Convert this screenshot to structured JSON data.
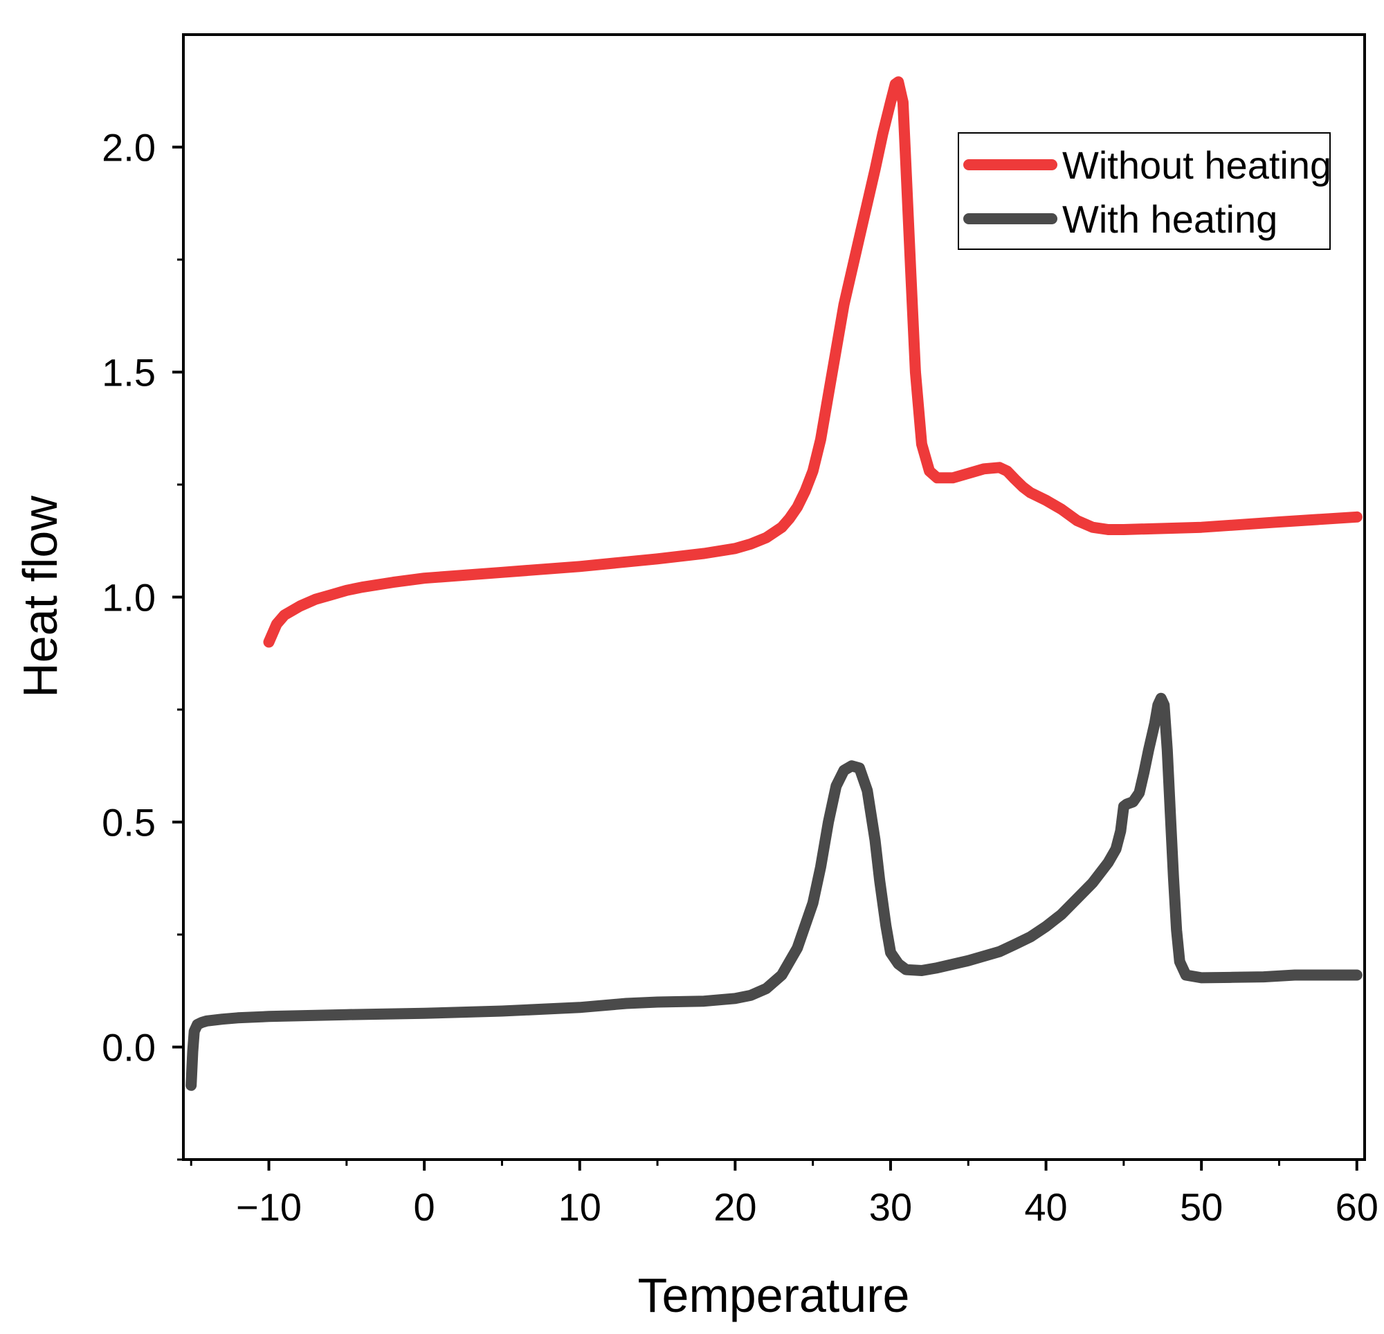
{
  "chart_data": {
    "type": "line",
    "title": "",
    "xlabel": "Temperature",
    "ylabel": "Heat flow",
    "xlim": [
      -15.5,
      60.5
    ],
    "ylim": [
      -0.25,
      2.25
    ],
    "x_ticks": [
      -10,
      0,
      10,
      20,
      30,
      40,
      50,
      60
    ],
    "x_tick_labels": [
      "−10",
      "0",
      "10",
      "20",
      "30",
      "40",
      "50",
      "60"
    ],
    "x_minor_ticks": [
      -15,
      -5,
      5,
      15,
      25,
      35,
      45,
      55
    ],
    "y_ticks": [
      0.0,
      0.5,
      1.0,
      1.5,
      2.0
    ],
    "y_tick_labels": [
      "0.0",
      "0.5",
      "1.0",
      "1.5",
      "2.0"
    ],
    "y_minor_ticks": [
      -0.25,
      0.25,
      0.75,
      1.25,
      1.75
    ],
    "grid": false,
    "legend_position": "top-right",
    "series": [
      {
        "name": "Without heating",
        "color": "#ee3a3a",
        "x": [
          -10,
          -9.5,
          -9,
          -8,
          -7,
          -6,
          -5,
          -4,
          -2,
          0,
          5,
          10,
          15,
          18,
          20,
          21,
          22,
          23,
          23.5,
          24,
          24.5,
          25,
          25.5,
          26,
          27,
          28,
          29,
          29.5,
          30,
          30.3,
          30.5,
          30.8,
          31,
          31.3,
          31.6,
          32,
          32.5,
          33,
          34,
          35,
          36,
          37,
          37.5,
          38,
          38.5,
          39,
          40,
          41,
          42,
          43,
          44,
          45,
          50,
          55,
          60
        ],
        "y": [
          0.9,
          0.94,
          0.96,
          0.98,
          0.995,
          1.005,
          1.015,
          1.022,
          1.033,
          1.042,
          1.055,
          1.068,
          1.085,
          1.097,
          1.108,
          1.118,
          1.132,
          1.155,
          1.175,
          1.2,
          1.235,
          1.28,
          1.35,
          1.45,
          1.65,
          1.8,
          1.95,
          2.03,
          2.1,
          2.14,
          2.145,
          2.1,
          1.95,
          1.72,
          1.5,
          1.34,
          1.28,
          1.265,
          1.265,
          1.275,
          1.285,
          1.288,
          1.28,
          1.262,
          1.245,
          1.232,
          1.215,
          1.195,
          1.17,
          1.155,
          1.15,
          1.15,
          1.155,
          1.167,
          1.178
        ]
      },
      {
        "name": "With heating",
        "color": "#4a4a4a",
        "x": [
          -15,
          -14.9,
          -14.8,
          -14.6,
          -14.3,
          -14,
          -13,
          -12,
          -10,
          -5,
          0,
          5,
          10,
          13,
          15,
          18,
          20,
          21,
          22,
          23,
          24,
          25,
          25.5,
          26,
          26.5,
          27,
          27.5,
          28,
          28.5,
          29,
          29.3,
          29.7,
          30,
          30.5,
          31,
          32,
          33,
          35,
          37,
          38,
          39,
          40,
          41,
          42,
          43,
          44,
          44.5,
          44.8,
          45,
          45.2,
          45.6,
          46,
          46.3,
          46.6,
          47,
          47.2,
          47.4,
          47.6,
          47.8,
          48,
          48.2,
          48.4,
          48.6,
          49,
          50,
          52,
          54,
          56,
          58,
          60
        ],
        "y": [
          -0.085,
          -0.01,
          0.035,
          0.05,
          0.055,
          0.058,
          0.062,
          0.065,
          0.068,
          0.072,
          0.075,
          0.08,
          0.088,
          0.097,
          0.1,
          0.102,
          0.108,
          0.115,
          0.13,
          0.16,
          0.22,
          0.32,
          0.4,
          0.5,
          0.58,
          0.615,
          0.625,
          0.62,
          0.57,
          0.46,
          0.37,
          0.27,
          0.21,
          0.185,
          0.172,
          0.17,
          0.176,
          0.192,
          0.212,
          0.228,
          0.245,
          0.268,
          0.295,
          0.33,
          0.365,
          0.41,
          0.44,
          0.48,
          0.535,
          0.54,
          0.545,
          0.565,
          0.61,
          0.66,
          0.72,
          0.76,
          0.775,
          0.76,
          0.66,
          0.52,
          0.38,
          0.26,
          0.19,
          0.16,
          0.154,
          0.155,
          0.156,
          0.16,
          0.16,
          0.16
        ]
      }
    ]
  }
}
